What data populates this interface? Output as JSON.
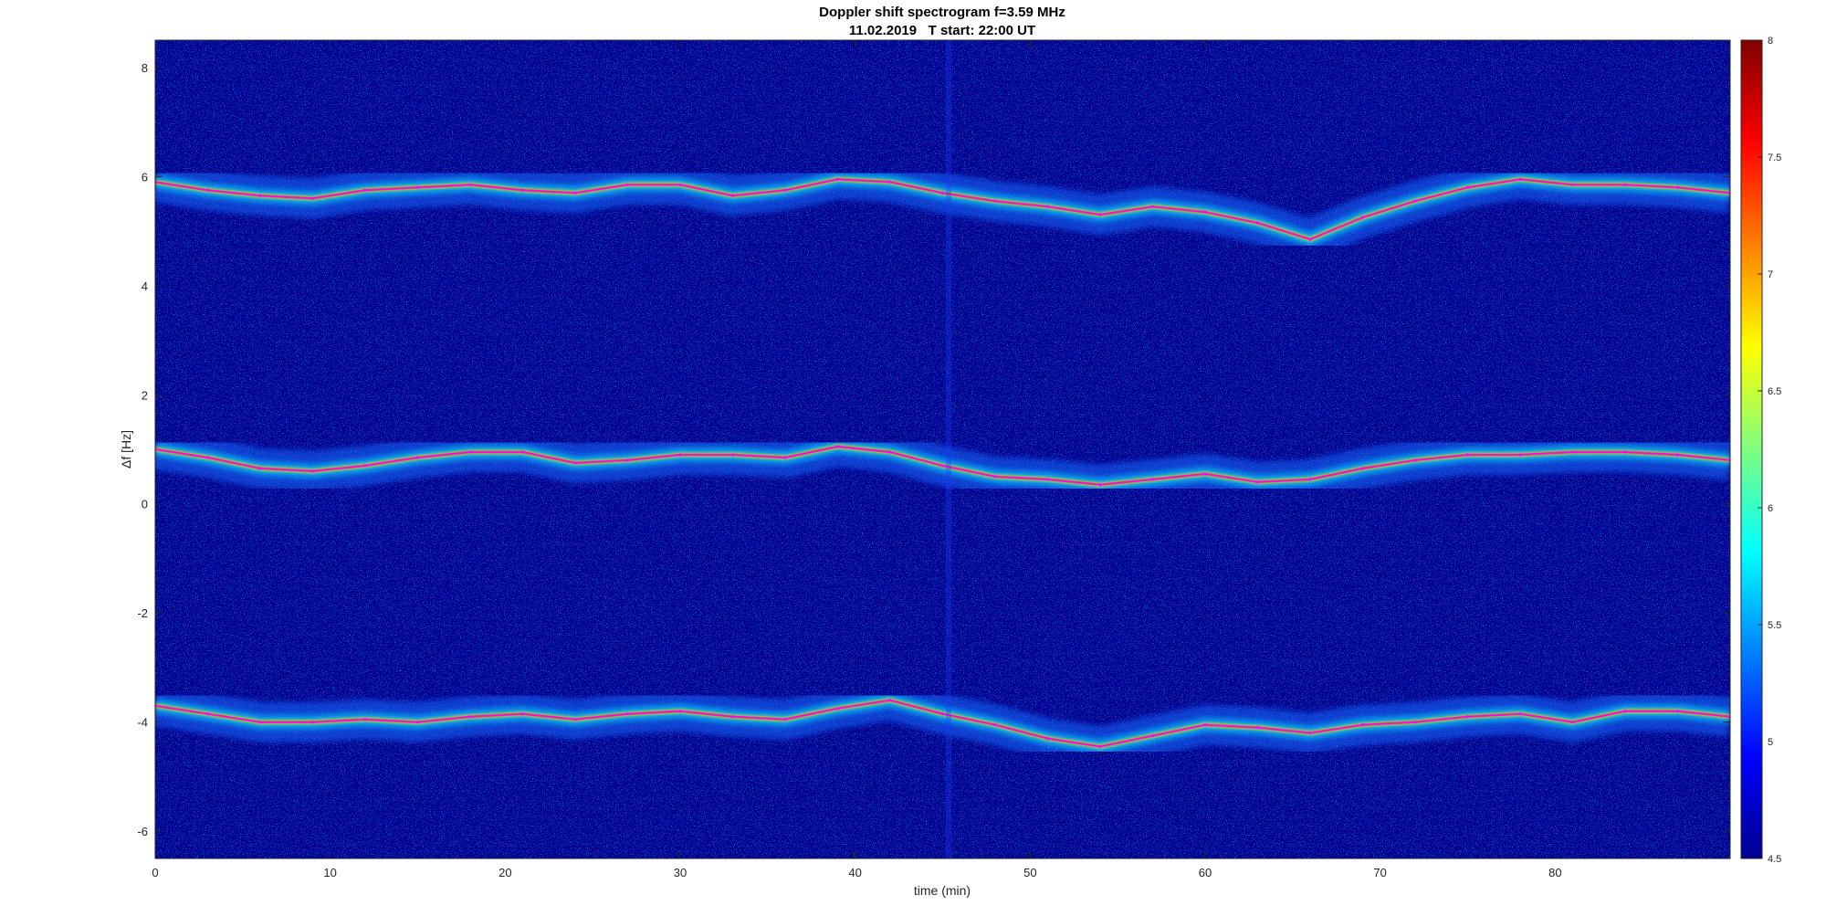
{
  "chart_data": {
    "type": "heatmap",
    "title": "Doppler shift spectrogram f=3.59 MHz",
    "subtitle": "11.02.2019   T start: 22:00 UT",
    "xlabel": "time (min)",
    "ylabel": "Δf [Hz]",
    "xlim": [
      0,
      90
    ],
    "ylim": [
      -6.5,
      8.5
    ],
    "xticks": [
      0,
      10,
      20,
      30,
      40,
      50,
      60,
      70,
      80
    ],
    "xtick_labels": [
      "0",
      "10",
      "20",
      "30",
      "40",
      "50",
      "60",
      "70",
      "80"
    ],
    "yticks": [
      8,
      6,
      4,
      2,
      0,
      -2,
      -4,
      -6
    ],
    "ytick_labels": [
      "8",
      "6",
      "4",
      "2",
      "0",
      "-2",
      "-4",
      "-6"
    ],
    "colorbar": {
      "range": [
        4.5,
        8
      ],
      "ticks": [
        8,
        7.5,
        7,
        6.5,
        6,
        5.5,
        5,
        4.5
      ],
      "tick_labels": [
        "8",
        "7.5",
        "7",
        "6.5",
        "6",
        "5.5",
        "5",
        "4.5"
      ],
      "colormap": "jet"
    },
    "grid": false,
    "series": [
      {
        "x": [
          0,
          3,
          6,
          9,
          12,
          15,
          18,
          21,
          24,
          27,
          30,
          33,
          36,
          39,
          42,
          45,
          48,
          51,
          54,
          57,
          60,
          63,
          66,
          69,
          72,
          75,
          78,
          81,
          84,
          87,
          90
        ],
        "y": [
          5.9,
          5.75,
          5.65,
          5.6,
          5.75,
          5.8,
          5.85,
          5.75,
          5.7,
          5.85,
          5.85,
          5.65,
          5.75,
          5.95,
          5.9,
          5.7,
          5.55,
          5.45,
          5.3,
          5.45,
          5.35,
          5.15,
          4.85,
          5.25,
          5.55,
          5.8,
          5.95,
          5.85,
          5.85,
          5.8,
          5.7
        ]
      },
      {
        "x": [
          0,
          3,
          6,
          9,
          12,
          15,
          18,
          21,
          24,
          27,
          30,
          33,
          36,
          39,
          42,
          45,
          48,
          51,
          54,
          57,
          60,
          63,
          66,
          69,
          72,
          75,
          78,
          81,
          84,
          87,
          90
        ],
        "y": [
          1.0,
          0.85,
          0.65,
          0.6,
          0.7,
          0.85,
          0.95,
          0.95,
          0.75,
          0.8,
          0.9,
          0.9,
          0.85,
          1.05,
          0.95,
          0.7,
          0.5,
          0.45,
          0.35,
          0.45,
          0.55,
          0.4,
          0.45,
          0.65,
          0.8,
          0.9,
          0.9,
          0.95,
          0.95,
          0.9,
          0.8
        ]
      },
      {
        "x": [
          0,
          3,
          6,
          9,
          12,
          15,
          18,
          21,
          24,
          27,
          30,
          33,
          36,
          39,
          42,
          45,
          48,
          51,
          54,
          57,
          60,
          63,
          66,
          69,
          72,
          75,
          78,
          81,
          84,
          87,
          90
        ],
        "y": [
          -3.7,
          -3.85,
          -4.0,
          -4.0,
          -3.95,
          -4.0,
          -3.9,
          -3.85,
          -3.95,
          -3.85,
          -3.8,
          -3.9,
          -3.95,
          -3.75,
          -3.6,
          -3.85,
          -4.05,
          -4.3,
          -4.45,
          -4.25,
          -4.05,
          -4.1,
          -4.2,
          -4.05,
          -4.0,
          -3.9,
          -3.85,
          -4.0,
          -3.8,
          -3.8,
          -3.9
        ]
      }
    ],
    "colors": {
      "background": "#00008f",
      "trace": "#ff00ff"
    }
  }
}
